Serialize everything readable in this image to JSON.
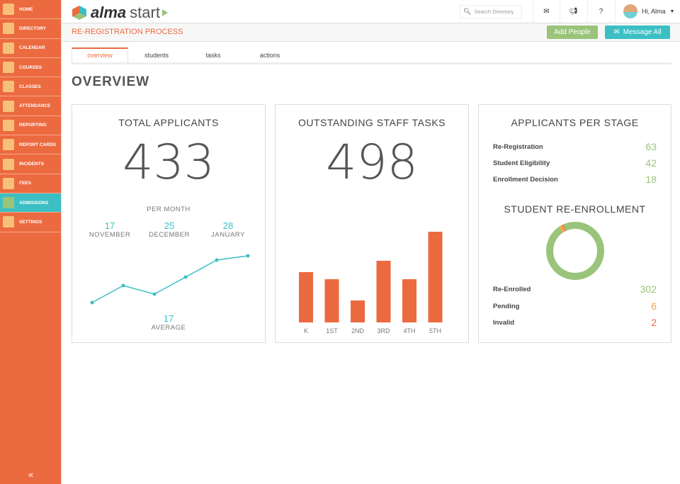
{
  "sidebar": {
    "items": [
      {
        "label": "HOME",
        "icon": "schoolhouse-icon"
      },
      {
        "label": "DIRECTORY",
        "icon": "contact-book-icon"
      },
      {
        "label": "CALENDAR",
        "icon": "calendar-icon"
      },
      {
        "label": "COURSES",
        "icon": "courses-icon"
      },
      {
        "label": "CLASSES",
        "icon": "apple-icon"
      },
      {
        "label": "ATTENDANCE",
        "icon": "checklist-icon"
      },
      {
        "label": "REPORTING",
        "icon": "report-icon"
      },
      {
        "label": "REPORT CARDS",
        "icon": "report-card-icon"
      },
      {
        "label": "INCIDENTS",
        "icon": "warning-icon"
      },
      {
        "label": "FEES",
        "icon": "dollar-icon"
      },
      {
        "label": "ADMISSIONS",
        "icon": "play-icon",
        "active": true
      },
      {
        "label": "SETTINGS",
        "icon": "settings-icon"
      }
    ],
    "collapse": "«"
  },
  "header": {
    "logo_bold": "alma",
    "logo_light": "start",
    "search_placeholder": "Search Directory",
    "greeting": "Hi, Alma"
  },
  "subheader": {
    "title": "RE-REGISTRATION PROCESS",
    "add_people": "Add People",
    "message_all": "Message All"
  },
  "tabs": [
    {
      "label": "overview",
      "active": true
    },
    {
      "label": "students"
    },
    {
      "label": "tasks"
    },
    {
      "label": "actions"
    }
  ],
  "page_title": "OVERVIEW",
  "colors": {
    "orange": "#ec6a40",
    "teal": "#3bbfc4",
    "green": "#9ac47a",
    "amber": "#f5a14b"
  },
  "total": {
    "title": "TOTAL APPLICANTS",
    "value": "433",
    "per_month": "PER MONTH",
    "months": [
      {
        "n": "17",
        "label": "NOVEMBER"
      },
      {
        "n": "25",
        "label": "DECEMBER"
      },
      {
        "n": "28",
        "label": "JANUARY"
      }
    ],
    "avg": "17",
    "avg_label": "AVERAGE"
  },
  "tasks": {
    "title": "OUTSTANDING STAFF TASKS",
    "value": "498"
  },
  "stages": {
    "title": "APPLICANTS PER STAGE",
    "rows": [
      {
        "label": "Re-Registration",
        "value": "63"
      },
      {
        "label": "Student Eligibility",
        "value": "42"
      },
      {
        "label": "Enrollment Decision",
        "value": "18"
      }
    ]
  },
  "reenroll": {
    "title": "STUDENT RE-ENROLLMENT",
    "rows": [
      {
        "label": "Re-Enrolled",
        "value": "302",
        "color": "#9ac47a"
      },
      {
        "label": "Pending",
        "value": "6",
        "color": "#f5a14b"
      },
      {
        "label": "Invalid",
        "value": "2",
        "color": "#ec6a40"
      }
    ]
  },
  "chart_data": [
    {
      "type": "line",
      "values": [
        10,
        18,
        14,
        22,
        30,
        32
      ]
    },
    {
      "type": "bar",
      "categories": [
        "K",
        "1ST",
        "2ND",
        "3RD",
        "4TH",
        "5TH"
      ],
      "values": [
        71,
        61,
        31,
        87,
        61,
        128
      ]
    },
    {
      "type": "pie",
      "categories": [
        "Re-Enrolled",
        "Pending",
        "Invalid"
      ],
      "values": [
        302,
        6,
        2
      ]
    }
  ]
}
